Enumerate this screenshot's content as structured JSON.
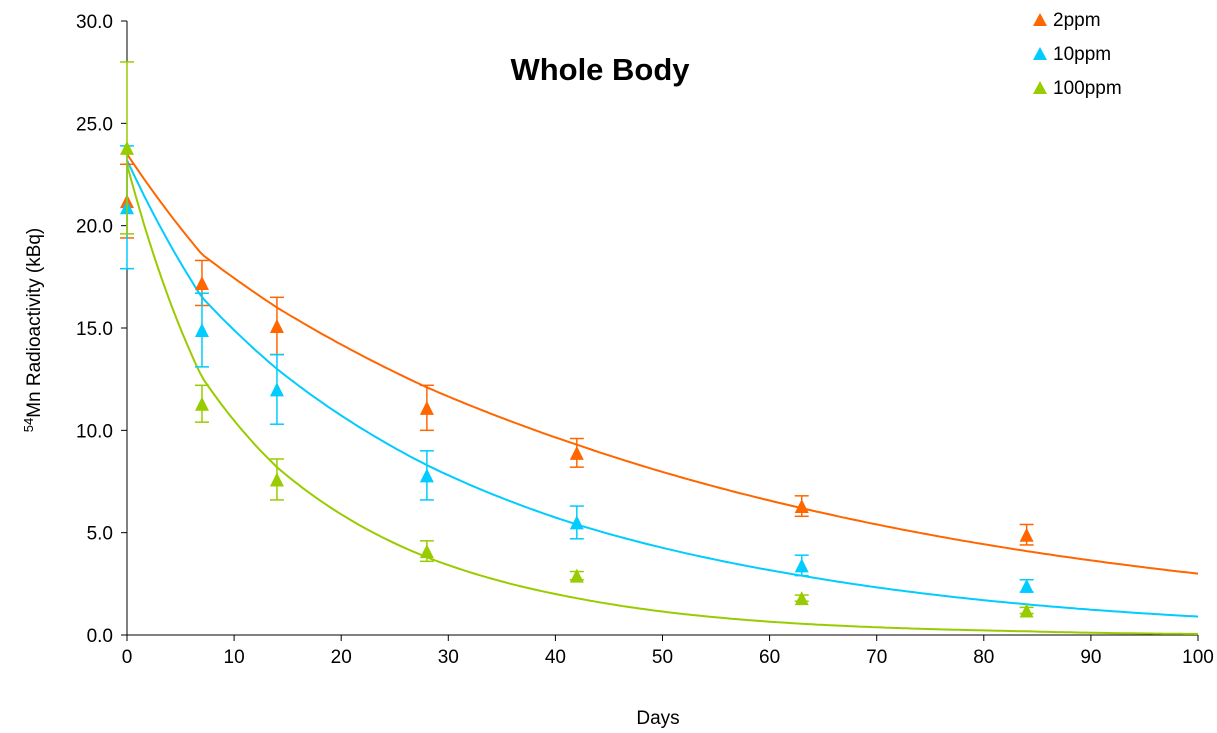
{
  "chart_data": {
    "type": "scatter",
    "title": "Whole Body",
    "xlabel": "Days",
    "ylabel_isotope_mass": "54",
    "ylabel_rest": "Mn Radioactivity (kBq)",
    "xlim": [
      0,
      100
    ],
    "ylim": [
      0,
      30
    ],
    "xticks": [
      0,
      10,
      20,
      30,
      40,
      50,
      60,
      70,
      80,
      90,
      100
    ],
    "yticks": [
      0,
      5,
      10,
      15,
      20,
      25,
      30
    ],
    "ytick_labels": [
      "0.0",
      "5.0",
      "10.0",
      "15.0",
      "20.0",
      "25.0",
      "30.0"
    ],
    "grid": false,
    "legend_position": "top-right",
    "x": [
      0,
      7,
      14,
      28,
      42,
      63,
      84
    ],
    "series": [
      {
        "name": "2ppm",
        "color": "#ff6600",
        "marker": "triangle",
        "values": [
          21.2,
          17.2,
          15.1,
          11.1,
          8.9,
          6.3,
          4.9
        ],
        "errors": [
          1.8,
          1.1,
          1.4,
          1.1,
          0.7,
          0.5,
          0.5
        ],
        "fit_curve": [
          [
            0,
            23.5
          ],
          [
            7,
            18.6
          ],
          [
            14,
            16.0
          ],
          [
            28,
            12.1
          ],
          [
            42,
            9.3
          ],
          [
            63,
            6.2
          ],
          [
            84,
            4.1
          ],
          [
            100,
            3.0
          ]
        ]
      },
      {
        "name": "10ppm",
        "color": "#00ccff",
        "marker": "triangle",
        "values": [
          20.9,
          14.9,
          12.0,
          7.8,
          5.5,
          3.4,
          2.4
        ],
        "errors": [
          3.0,
          1.8,
          1.7,
          1.2,
          0.8,
          0.5,
          0.3
        ],
        "fit_curve": [
          [
            0,
            23.2
          ],
          [
            7,
            16.5
          ],
          [
            14,
            13.0
          ],
          [
            28,
            8.3
          ],
          [
            42,
            5.4
          ],
          [
            63,
            2.9
          ],
          [
            84,
            1.5
          ],
          [
            100,
            0.9
          ]
        ]
      },
      {
        "name": "100ppm",
        "color": "#99cc00",
        "marker": "triangle",
        "values": [
          23.8,
          11.3,
          7.6,
          4.1,
          2.9,
          1.8,
          1.2
        ],
        "errors": [
          4.2,
          0.9,
          1.0,
          0.5,
          0.2,
          0.15,
          0.15
        ],
        "fit_curve": [
          [
            0,
            23.0
          ],
          [
            7,
            12.6
          ],
          [
            14,
            8.2
          ],
          [
            28,
            3.8
          ],
          [
            42,
            1.8
          ],
          [
            63,
            0.55
          ],
          [
            84,
            0.18
          ],
          [
            100,
            0.05
          ]
        ]
      }
    ]
  }
}
